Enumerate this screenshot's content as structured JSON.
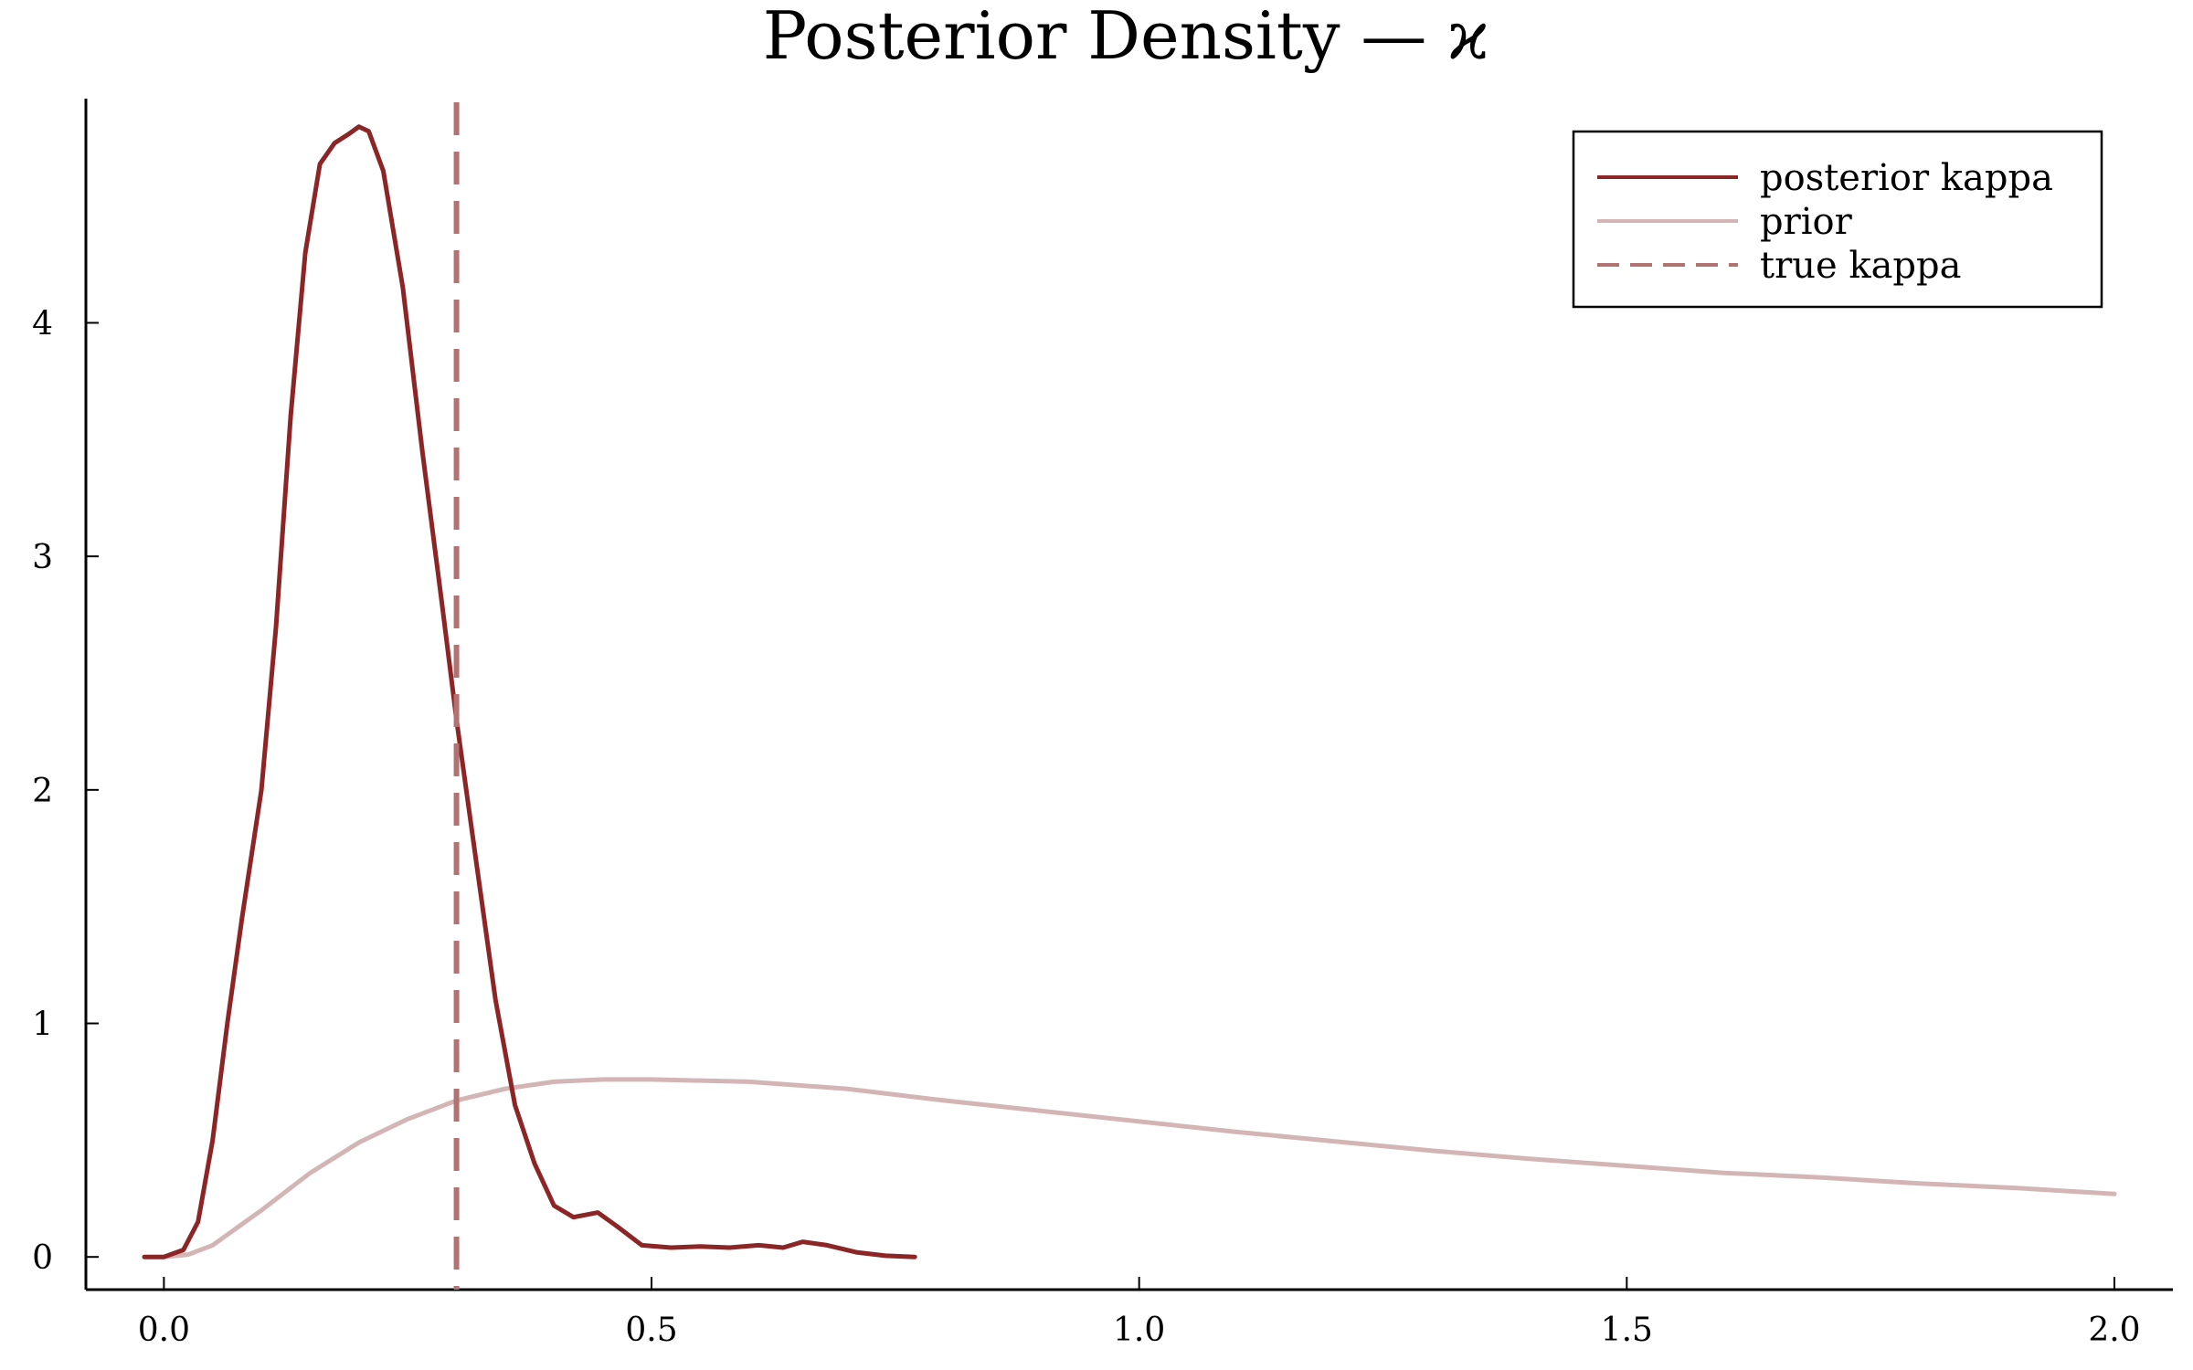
{
  "chart_data": {
    "type": "line",
    "title": "Posterior Density — ϰ",
    "xlabel": "",
    "ylabel": "",
    "xlim": [
      -0.08,
      2.06
    ],
    "ylim": [
      -0.14,
      4.96
    ],
    "x_ticks": [
      {
        "value": 0.0,
        "label": "0.0"
      },
      {
        "value": 0.5,
        "label": "0.5"
      },
      {
        "value": 1.0,
        "label": "1.0"
      },
      {
        "value": 1.5,
        "label": "1.5"
      },
      {
        "value": 2.0,
        "label": "2.0"
      }
    ],
    "y_ticks": [
      {
        "value": 0,
        "label": "0"
      },
      {
        "value": 1,
        "label": "1"
      },
      {
        "value": 2,
        "label": "2"
      },
      {
        "value": 3,
        "label": "3"
      },
      {
        "value": 4,
        "label": "4"
      }
    ],
    "grid": false,
    "legend": {
      "position": "top-right"
    },
    "series": [
      {
        "name": "posterior kappa",
        "color": "#8B2526",
        "style": "solid",
        "points": [
          [
            -0.02,
            0.0
          ],
          [
            0.0,
            0.0
          ],
          [
            0.02,
            0.03
          ],
          [
            0.035,
            0.15
          ],
          [
            0.05,
            0.5
          ],
          [
            0.065,
            1.0
          ],
          [
            0.08,
            1.45
          ],
          [
            0.1,
            2.0
          ],
          [
            0.115,
            2.7
          ],
          [
            0.13,
            3.6
          ],
          [
            0.145,
            4.3
          ],
          [
            0.16,
            4.68
          ],
          [
            0.175,
            4.77
          ],
          [
            0.19,
            4.81
          ],
          [
            0.2,
            4.84
          ],
          [
            0.21,
            4.82
          ],
          [
            0.225,
            4.65
          ],
          [
            0.245,
            4.15
          ],
          [
            0.265,
            3.45
          ],
          [
            0.285,
            2.8
          ],
          [
            0.3,
            2.3
          ],
          [
            0.32,
            1.7
          ],
          [
            0.34,
            1.1
          ],
          [
            0.36,
            0.65
          ],
          [
            0.38,
            0.4
          ],
          [
            0.4,
            0.22
          ],
          [
            0.42,
            0.17
          ],
          [
            0.445,
            0.19
          ],
          [
            0.465,
            0.13
          ],
          [
            0.49,
            0.05
          ],
          [
            0.52,
            0.04
          ],
          [
            0.55,
            0.045
          ],
          [
            0.58,
            0.04
          ],
          [
            0.61,
            0.05
          ],
          [
            0.635,
            0.04
          ],
          [
            0.655,
            0.065
          ],
          [
            0.68,
            0.05
          ],
          [
            0.71,
            0.02
          ],
          [
            0.74,
            0.005
          ],
          [
            0.77,
            0.0
          ]
        ]
      },
      {
        "name": "prior",
        "color": "#D4B5B5",
        "style": "solid",
        "points": [
          [
            0.0,
            0.0
          ],
          [
            0.025,
            0.01
          ],
          [
            0.05,
            0.05
          ],
          [
            0.1,
            0.2
          ],
          [
            0.15,
            0.36
          ],
          [
            0.2,
            0.49
          ],
          [
            0.25,
            0.59
          ],
          [
            0.3,
            0.67
          ],
          [
            0.35,
            0.72
          ],
          [
            0.4,
            0.75
          ],
          [
            0.45,
            0.76
          ],
          [
            0.5,
            0.76
          ],
          [
            0.6,
            0.75
          ],
          [
            0.7,
            0.72
          ],
          [
            0.8,
            0.67
          ],
          [
            0.9,
            0.625
          ],
          [
            1.0,
            0.58
          ],
          [
            1.1,
            0.535
          ],
          [
            1.2,
            0.495
          ],
          [
            1.3,
            0.455
          ],
          [
            1.4,
            0.42
          ],
          [
            1.5,
            0.39
          ],
          [
            1.6,
            0.36
          ],
          [
            1.7,
            0.34
          ],
          [
            1.8,
            0.315
          ],
          [
            1.9,
            0.295
          ],
          [
            2.0,
            0.27
          ]
        ]
      },
      {
        "name": "true kappa",
        "color": "#B07372",
        "style": "dashed",
        "vline": 0.3
      }
    ]
  }
}
